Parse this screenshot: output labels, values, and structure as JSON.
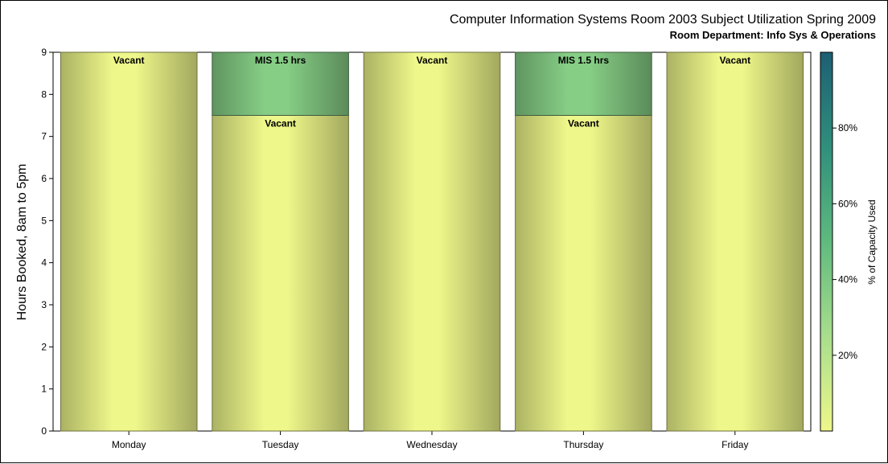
{
  "chart_data": {
    "type": "bar",
    "stacked": true,
    "title": "Computer Information Systems Room 2003 Subject Utilization Spring 2009",
    "subtitle": "Room Department:  Info Sys & Operations",
    "xlabel": "",
    "ylabel": "Hours Booked, 8am to 5pm",
    "ylim": [
      0,
      9
    ],
    "yticks": [
      "0",
      "1",
      "2",
      "3",
      "4",
      "5",
      "6",
      "7",
      "8",
      "9"
    ],
    "categories": [
      "Monday",
      "Tuesday",
      "Wednesday",
      "Thursday",
      "Friday"
    ],
    "segments": [
      [
        {
          "label": "Vacant",
          "hours": 9,
          "capacity_pct": 0
        }
      ],
      [
        {
          "label": "Vacant",
          "hours": 7.5,
          "capacity_pct": 0
        },
        {
          "label": "MIS 1.5 hrs",
          "hours": 1.5,
          "capacity_pct": 16.7
        }
      ],
      [
        {
          "label": "Vacant",
          "hours": 9,
          "capacity_pct": 0
        }
      ],
      [
        {
          "label": "Vacant",
          "hours": 7.5,
          "capacity_pct": 0
        },
        {
          "label": "MIS 1.5 hrs",
          "hours": 1.5,
          "capacity_pct": 16.7
        }
      ],
      [
        {
          "label": "Vacant",
          "hours": 9,
          "capacity_pct": 0
        }
      ]
    ],
    "colorbar": {
      "label": "% of Capacity Used",
      "range": [
        0,
        100
      ],
      "ticks": [
        "20%",
        "40%",
        "60%",
        "80%"
      ],
      "tick_values": [
        20,
        40,
        60,
        80
      ],
      "colors": [
        "#eef78a",
        "#a8de8c",
        "#5fba7e",
        "#2f8f7c",
        "#1d5f74"
      ]
    },
    "grid": false,
    "legend": "right"
  }
}
